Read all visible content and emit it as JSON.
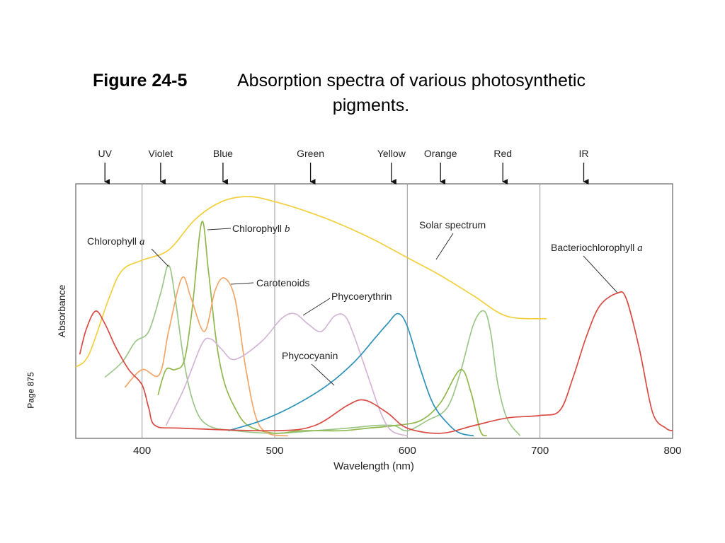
{
  "figure": {
    "number": "Figure 24-5",
    "title_line1": "Absorption spectra of various photosynthetic",
    "title_line2": "pigments.",
    "page_note": "Page 875"
  },
  "chart_data": {
    "type": "line",
    "xlabel": "Wavelength (nm)",
    "ylabel": "Absorbance",
    "xlim": [
      350,
      800
    ],
    "ylim": [
      0,
      1
    ],
    "x_ticks": [
      400,
      500,
      600,
      700,
      800
    ],
    "grid": "vertical",
    "regions": [
      {
        "label": "UV",
        "x": 372
      },
      {
        "label": "Violet",
        "x": 414
      },
      {
        "label": "Blue",
        "x": 461
      },
      {
        "label": "Green",
        "x": 527
      },
      {
        "label": "Yellow",
        "x": 588
      },
      {
        "label": "Orange",
        "x": 625
      },
      {
        "label": "Red",
        "x": 672
      },
      {
        "label": "IR",
        "x": 733
      }
    ],
    "series": [
      {
        "name": "Solar spectrum",
        "color": "#f2cf3b",
        "points": [
          [
            350,
            0.28
          ],
          [
            360,
            0.33
          ],
          [
            375,
            0.55
          ],
          [
            385,
            0.66
          ],
          [
            400,
            0.7
          ],
          [
            420,
            0.74
          ],
          [
            440,
            0.86
          ],
          [
            460,
            0.93
          ],
          [
            480,
            0.95
          ],
          [
            500,
            0.93
          ],
          [
            525,
            0.89
          ],
          [
            550,
            0.84
          ],
          [
            575,
            0.78
          ],
          [
            600,
            0.71
          ],
          [
            625,
            0.64
          ],
          [
            650,
            0.56
          ],
          [
            675,
            0.48
          ],
          [
            705,
            0.47
          ]
        ]
      },
      {
        "name": "Chlorophyll a",
        "color": "#9cc788",
        "points": [
          [
            372,
            0.24
          ],
          [
            385,
            0.3
          ],
          [
            395,
            0.38
          ],
          [
            405,
            0.42
          ],
          [
            414,
            0.57
          ],
          [
            420,
            0.68
          ],
          [
            425,
            0.55
          ],
          [
            432,
            0.29
          ],
          [
            440,
            0.12
          ],
          [
            450,
            0.05
          ],
          [
            470,
            0.03
          ],
          [
            500,
            0.02
          ],
          [
            530,
            0.03
          ],
          [
            555,
            0.04
          ],
          [
            575,
            0.05
          ],
          [
            590,
            0.05
          ],
          [
            600,
            0.03
          ],
          [
            615,
            0.07
          ],
          [
            630,
            0.12
          ],
          [
            640,
            0.26
          ],
          [
            650,
            0.45
          ],
          [
            658,
            0.5
          ],
          [
            663,
            0.41
          ],
          [
            668,
            0.22
          ],
          [
            675,
            0.08
          ],
          [
            685,
            0.01
          ]
        ]
      },
      {
        "name": "Chlorophyll b",
        "color": "#90b84d",
        "points": [
          [
            412,
            0.17
          ],
          [
            418,
            0.27
          ],
          [
            425,
            0.27
          ],
          [
            432,
            0.31
          ],
          [
            438,
            0.52
          ],
          [
            445,
            0.85
          ],
          [
            450,
            0.66
          ],
          [
            456,
            0.38
          ],
          [
            462,
            0.22
          ],
          [
            470,
            0.12
          ],
          [
            480,
            0.05
          ],
          [
            500,
            0.02
          ],
          [
            520,
            0.03
          ],
          [
            550,
            0.03
          ],
          [
            570,
            0.04
          ],
          [
            590,
            0.05
          ],
          [
            610,
            0.07
          ],
          [
            625,
            0.14
          ],
          [
            640,
            0.27
          ],
          [
            648,
            0.18
          ],
          [
            655,
            0.03
          ],
          [
            660,
            0.01
          ]
        ]
      },
      {
        "name": "Carotenoids",
        "color": "#f3a668",
        "points": [
          [
            387,
            0.2
          ],
          [
            400,
            0.27
          ],
          [
            413,
            0.25
          ],
          [
            420,
            0.42
          ],
          [
            430,
            0.63
          ],
          [
            437,
            0.55
          ],
          [
            447,
            0.42
          ],
          [
            455,
            0.58
          ],
          [
            462,
            0.63
          ],
          [
            470,
            0.55
          ],
          [
            478,
            0.28
          ],
          [
            486,
            0.08
          ],
          [
            495,
            0.02
          ],
          [
            510,
            0.01
          ]
        ]
      },
      {
        "name": "Phycoerythrin",
        "color": "#d3b6d5",
        "points": [
          [
            418,
            0.05
          ],
          [
            432,
            0.2
          ],
          [
            445,
            0.37
          ],
          [
            452,
            0.39
          ],
          [
            460,
            0.35
          ],
          [
            470,
            0.31
          ],
          [
            490,
            0.38
          ],
          [
            505,
            0.47
          ],
          [
            515,
            0.49
          ],
          [
            525,
            0.45
          ],
          [
            535,
            0.42
          ],
          [
            545,
            0.48
          ],
          [
            553,
            0.48
          ],
          [
            560,
            0.4
          ],
          [
            570,
            0.25
          ],
          [
            580,
            0.1
          ],
          [
            588,
            0.03
          ],
          [
            600,
            0.01
          ]
        ]
      },
      {
        "name": "Phycocyanin",
        "color": "#2f92b9",
        "points": [
          [
            465,
            0.03
          ],
          [
            490,
            0.07
          ],
          [
            515,
            0.13
          ],
          [
            540,
            0.21
          ],
          [
            560,
            0.3
          ],
          [
            575,
            0.39
          ],
          [
            585,
            0.45
          ],
          [
            593,
            0.49
          ],
          [
            600,
            0.44
          ],
          [
            610,
            0.27
          ],
          [
            620,
            0.13
          ],
          [
            632,
            0.05
          ],
          [
            640,
            0.02
          ],
          [
            650,
            0.01
          ]
        ]
      },
      {
        "name": "Bacteriochlorophyll a",
        "color": "#d94b43",
        "points": [
          [
            353,
            0.33
          ],
          [
            358,
            0.43
          ],
          [
            365,
            0.5
          ],
          [
            372,
            0.45
          ],
          [
            380,
            0.36
          ],
          [
            390,
            0.27
          ],
          [
            400,
            0.21
          ],
          [
            405,
            0.12
          ],
          [
            410,
            0.05
          ],
          [
            430,
            0.04
          ],
          [
            500,
            0.03
          ],
          [
            530,
            0.05
          ],
          [
            555,
            0.13
          ],
          [
            568,
            0.15
          ],
          [
            585,
            0.1
          ],
          [
            600,
            0.04
          ],
          [
            625,
            0.02
          ],
          [
            650,
            0.05
          ],
          [
            675,
            0.08
          ],
          [
            700,
            0.09
          ],
          [
            715,
            0.11
          ],
          [
            725,
            0.24
          ],
          [
            735,
            0.4
          ],
          [
            745,
            0.52
          ],
          [
            758,
            0.57
          ],
          [
            765,
            0.55
          ],
          [
            775,
            0.35
          ],
          [
            785,
            0.1
          ],
          [
            795,
            0.04
          ],
          [
            800,
            0.03
          ]
        ]
      }
    ],
    "annotations": [
      {
        "text": "Solar spectrum",
        "series": "Solar spectrum"
      },
      {
        "text": "Chlorophyll ",
        "italic": "a",
        "series": "Chlorophyll a"
      },
      {
        "text": "Chlorophyll ",
        "italic": "b",
        "series": "Chlorophyll b"
      },
      {
        "text": "Carotenoids",
        "series": "Carotenoids"
      },
      {
        "text": "Phycoerythrin",
        "series": "Phycoerythrin"
      },
      {
        "text": "Phycocyanin",
        "series": "Phycocyanin"
      },
      {
        "text": "Bacteriochlorophyll ",
        "italic": "a",
        "series": "Bacteriochlorophyll a"
      }
    ]
  }
}
